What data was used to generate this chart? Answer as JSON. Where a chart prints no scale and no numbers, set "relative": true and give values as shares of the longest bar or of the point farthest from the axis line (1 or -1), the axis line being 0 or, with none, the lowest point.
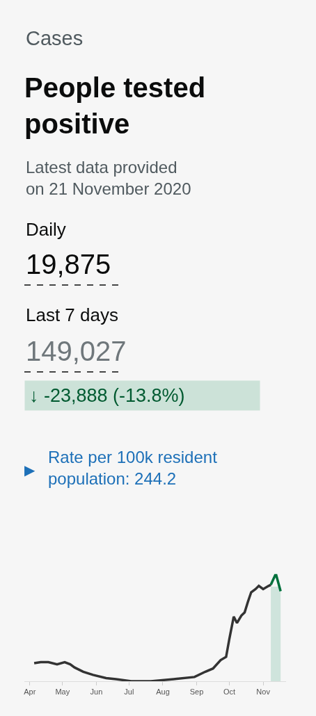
{
  "chart_data": {
    "type": "line",
    "title": "People tested positive",
    "subtitle": "Latest data provided on 21 November 2020",
    "annotations": [
      "Cases",
      "Daily",
      "19,875",
      "Last 7 days",
      "149,027",
      "↓ -23,888 (-13.8%)",
      "Rate per 100k resident population: 244.2",
      "▶"
    ],
    "relative": true,
    "series": [
      {
        "color": "#333333",
        "x": [
          "2020-04-05",
          "2020-04-11",
          "2020-04-18",
          "2020-04-26",
          "2020-05-03",
          "2020-05-08",
          "2020-05-12",
          "2020-05-20",
          "2020-05-29",
          "2020-06-10",
          "2020-06-19",
          "2020-07-03",
          "2020-07-21",
          "2020-08-11",
          "2020-08-30",
          "2020-09-09",
          "2020-09-16",
          "2020-09-23",
          "2020-09-28",
          "2020-10-01",
          "2020-10-05",
          "2020-10-08",
          "2020-10-12",
          "2020-10-15",
          "2020-10-18",
          "2020-10-21",
          "2020-10-25",
          "2020-10-28",
          "2020-11-01",
          "2020-11-06",
          "2020-11-08"
        ],
        "values": [
          0.17,
          0.18,
          0.18,
          0.16,
          0.18,
          0.16,
          0.13,
          0.09,
          0.06,
          0.03,
          0.02,
          0,
          0,
          0.02,
          0.04,
          0.09,
          0.12,
          0.2,
          0.23,
          0.4,
          0.61,
          0.55,
          0.62,
          0.65,
          0.75,
          0.84,
          0.87,
          0.9,
          0.87,
          0.9,
          0.91
        ]
      },
      {
        "color": "#00703c",
        "x": [
          "2020-11-08",
          "2020-11-12",
          "2020-11-13",
          "2020-11-17"
        ],
        "values": [
          0.91,
          1,
          1,
          0.85
        ]
      }
    ],
    "xlim": [
      "2020-03-27",
      "2020-11-22"
    ],
    "xticks": [
      {
        "value": "2020-04-01",
        "label": "Apr"
      },
      {
        "value": "2020-05-01",
        "label": "May"
      },
      {
        "value": "2020-06-01",
        "label": "Jun"
      },
      {
        "value": "2020-07-01",
        "label": "Jul"
      },
      {
        "value": "2020-08-01",
        "label": "Aug"
      },
      {
        "value": "2020-09-01",
        "label": "Sep"
      },
      {
        "value": "2020-10-01",
        "label": "Oct"
      },
      {
        "value": "2020-11-01",
        "label": "Nov"
      }
    ],
    "bands": [
      {
        "axis": "x",
        "from": "2020-11-08",
        "to": "2020-11-17",
        "color": "#cfe4dc"
      }
    ]
  }
}
